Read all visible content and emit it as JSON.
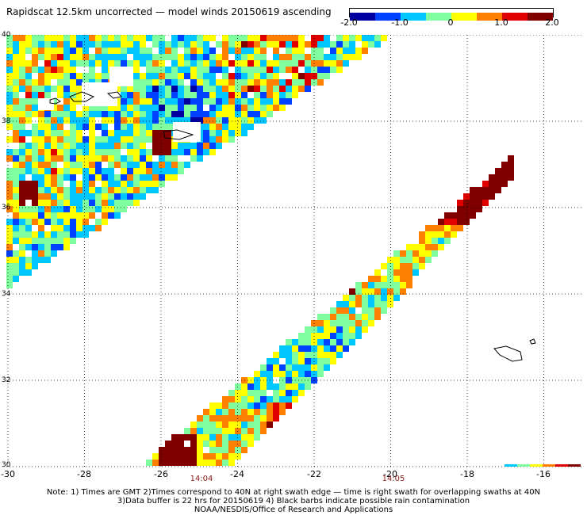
{
  "title": "Rapidscat 12.5km uncorrected — model winds 20150619 ascending",
  "colorbar": {
    "labels": [
      "-2.0",
      "-1.0",
      "0",
      "1.0",
      "2.0"
    ],
    "values": [
      -2.0,
      -1.0,
      0.0,
      1.0,
      2.0
    ],
    "min": -2.0,
    "max": 2.0,
    "colors": [
      "#0000a0",
      "#0040ff",
      "#00c8ff",
      "#7fff9f",
      "#ffff00",
      "#ff8000",
      "#e00000",
      "#800000"
    ]
  },
  "axes": {
    "x_ticks": [
      "-30",
      "-28",
      "-26",
      "-24",
      "-22",
      "-20",
      "-18",
      "-16"
    ],
    "x_values": [
      -30,
      -28,
      -26,
      -24,
      -22,
      -20,
      -18,
      -16
    ],
    "y_ticks": [
      "30",
      "32",
      "34",
      "36",
      "38",
      "40"
    ],
    "y_values": [
      30,
      32,
      34,
      36,
      38,
      40
    ],
    "lon_range": [
      -30,
      -15
    ],
    "lat_range": [
      30,
      40
    ]
  },
  "time_labels": [
    {
      "text": "14:04",
      "lon": -25
    },
    {
      "text": "14:05",
      "lon": -20
    }
  ],
  "notes": [
    "Note: 1) Times are GMT 2)Times correspond to 40N at right swath edge — time is right swath for overlapping swaths at 40N",
    "3)Data buffer is 22 hrs for 20150619 4) Black barbs indicate possible rain contamination",
    "NOAA/NESDIS/Office of Research and Applications"
  ],
  "swaths": [
    {
      "name": "left",
      "desc": "upper-left triangular swath, mostly negative to neutral"
    },
    {
      "name": "right",
      "desc": "diagonal swath from southwest to northeast, mixed with strong positive patches"
    }
  ]
}
